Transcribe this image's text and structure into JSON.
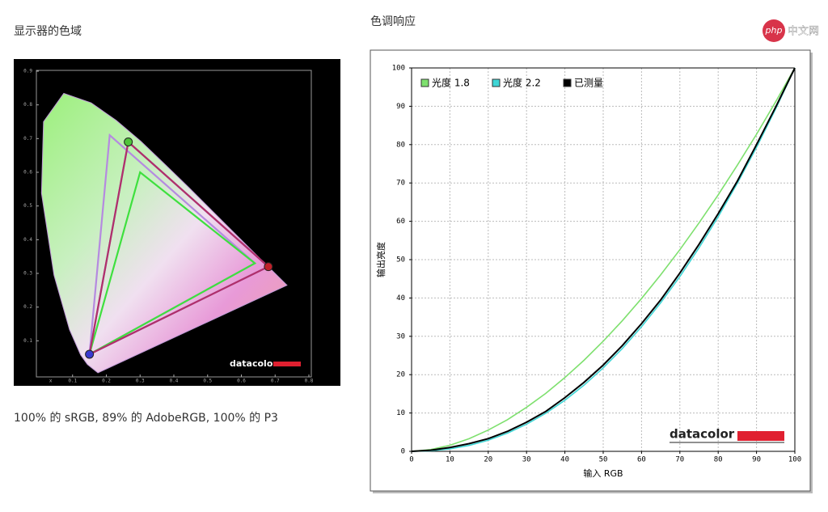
{
  "watermark": {
    "logo": "php",
    "text": "中文网"
  },
  "sections": [
    {
      "heading": "显示器的色域",
      "caption": "100% 的 sRGB, 89% 的 AdobeRGB, 100% 的 P3"
    },
    {
      "heading": "色调响应"
    }
  ],
  "chart_data": [
    {
      "type": "gamut",
      "brand": "datacolor",
      "xlabel": "x",
      "xlim": [
        0,
        0.8
      ],
      "ylim": [
        0,
        0.9
      ],
      "xticks": [
        0.1,
        0.2,
        0.3,
        0.4,
        0.5,
        0.6,
        0.7,
        0.8
      ],
      "yticks": [
        0.1,
        0.2,
        0.3,
        0.4,
        0.5,
        0.6,
        0.7,
        0.8,
        0.9
      ],
      "locus": {
        "x": [
          0.175,
          0.144,
          0.124,
          0.091,
          0.045,
          0.008,
          0.014,
          0.074,
          0.155,
          0.229,
          0.302,
          0.373,
          0.444,
          0.512,
          0.575,
          0.627,
          0.735
        ],
        "values": [
          0.005,
          0.03,
          0.058,
          0.133,
          0.295,
          0.538,
          0.75,
          0.834,
          0.806,
          0.754,
          0.692,
          0.624,
          0.555,
          0.487,
          0.424,
          0.372,
          0.265
        ]
      },
      "series": [
        {
          "color": "#b58ae0",
          "x": [
            0.64,
            0.21,
            0.15
          ],
          "values": [
            0.33,
            0.71,
            0.06
          ]
        },
        {
          "color": "#9a5ad2",
          "x": [
            0.68,
            0.265,
            0.15
          ],
          "values": [
            0.32,
            0.69,
            0.06
          ]
        },
        {
          "color": "#3ee03e",
          "x": [
            0.64,
            0.3,
            0.15
          ],
          "values": [
            0.33,
            0.6,
            0.06
          ]
        },
        {
          "color": "#b0306a",
          "x": [
            0.68,
            0.265,
            0.15
          ],
          "values": [
            0.32,
            0.69,
            0.06
          ],
          "markers": [
            "#c0202a",
            "#4fc43a",
            "#3a3ad0"
          ]
        }
      ]
    },
    {
      "type": "line",
      "brand": "datacolor",
      "xlabel": "输入 RGB",
      "ylabel": "输出亮度",
      "grid": true,
      "xlim": [
        0,
        100
      ],
      "ylim": [
        0,
        100
      ],
      "xticks": [
        0,
        10,
        20,
        30,
        40,
        50,
        60,
        70,
        80,
        90,
        100
      ],
      "yticks": [
        0,
        10,
        20,
        30,
        40,
        50,
        60,
        70,
        80,
        90,
        100
      ],
      "x": [
        0,
        5,
        10,
        15,
        20,
        25,
        30,
        35,
        40,
        45,
        50,
        55,
        60,
        65,
        70,
        75,
        80,
        85,
        90,
        95,
        100
      ],
      "series": [
        {
          "name": "光度 1.8",
          "color": "#7ee06e",
          "values": [
            0,
            0.46,
            1.58,
            3.29,
            5.55,
            8.25,
            11.49,
            15.11,
            19.24,
            23.76,
            28.72,
            34.09,
            39.86,
            46.05,
            52.6,
            59.58,
            66.9,
            74.64,
            82.7,
            91.18,
            100
          ]
        },
        {
          "name": "光度 2.2",
          "color": "#3fd6d6",
          "values": [
            0,
            0.14,
            0.63,
            1.54,
            2.9,
            4.74,
            7.08,
            9.93,
            13.33,
            17.26,
            21.76,
            26.84,
            32.51,
            38.76,
            45.6,
            53.1,
            61.2,
            69.94,
            79.3,
            89.33,
            100
          ]
        },
        {
          "name": "已测量",
          "color": "#000000",
          "values": [
            0,
            0.3,
            1.0,
            2.0,
            3.3,
            5.2,
            7.6,
            10.4,
            14,
            18,
            22.5,
            27.6,
            33.3,
            39.5,
            46.5,
            54,
            62,
            70.5,
            80,
            89.8,
            100
          ]
        }
      ]
    }
  ]
}
